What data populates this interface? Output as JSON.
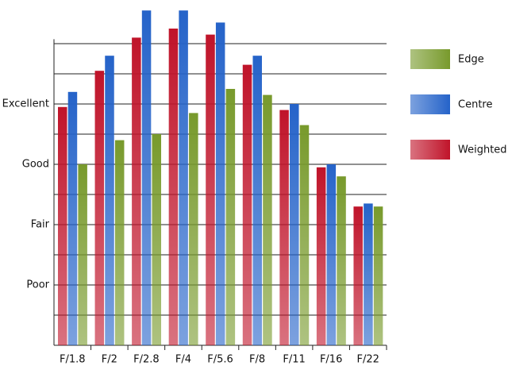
{
  "chart_data": {
    "type": "bar",
    "categories": [
      "F/1.8",
      "F/2",
      "F/2.8",
      "F/4",
      "F/5.6",
      "F/8",
      "F/11",
      "F/16",
      "F/22"
    ],
    "series": [
      {
        "name": "Weighted",
        "color": "#c0142a",
        "values": [
          7.9,
          9.1,
          10.2,
          10.5,
          10.3,
          9.3,
          7.8,
          5.9,
          4.6
        ]
      },
      {
        "name": "Centre",
        "color": "#2563c9",
        "values": [
          8.4,
          9.6,
          11.1,
          11.1,
          10.7,
          9.6,
          8.0,
          6.0,
          4.7
        ]
      },
      {
        "name": "Edge",
        "color": "#789a2c",
        "values": [
          6.0,
          6.8,
          7.0,
          7.7,
          8.5,
          8.3,
          7.3,
          5.6,
          4.6
        ]
      }
    ],
    "ylim": [
      0,
      11.2
    ],
    "yticks": [
      0,
      {
        "value": 1,
        "label": null
      },
      {
        "value": 2,
        "label": "Poor"
      },
      {
        "value": 3,
        "label": null
      },
      {
        "value": 4,
        "label": "Fair"
      },
      {
        "value": 5,
        "label": null
      },
      {
        "value": 6,
        "label": "Good"
      },
      {
        "value": 7,
        "label": null
      },
      {
        "value": 8,
        "label": "Excellent"
      },
      {
        "value": 9,
        "label": null
      },
      {
        "value": 10,
        "label": null
      }
    ],
    "grid": true
  }
}
